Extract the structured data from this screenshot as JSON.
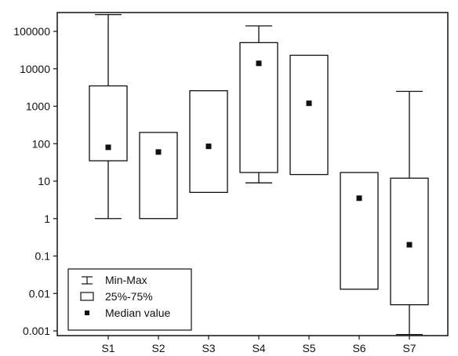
{
  "chart_data": {
    "type": "box",
    "title": "",
    "xlabel": "",
    "ylabel": "",
    "y_scale": "log",
    "ylim": [
      0.001,
      200000
    ],
    "grid": false,
    "legend_position": "bottom-left",
    "y_ticks": [
      {
        "value": 100000,
        "label": "100000"
      },
      {
        "value": 10000,
        "label": "10000"
      },
      {
        "value": 1000,
        "label": "1000"
      },
      {
        "value": 100,
        "label": "100"
      },
      {
        "value": 10,
        "label": "10"
      },
      {
        "value": 1,
        "label": "1"
      },
      {
        "value": 0.1,
        "label": "0.1"
      },
      {
        "value": 0.01,
        "label": "0.01"
      },
      {
        "value": 0.001,
        "label": "0.001"
      }
    ],
    "categories": [
      "S1",
      "S2",
      "S3",
      "S4",
      "S5",
      "S6",
      "S7"
    ],
    "boxes": [
      {
        "label": "S1",
        "min": 1,
        "q1": 35,
        "median": 80,
        "q3": 3500,
        "max": 280000
      },
      {
        "label": "S2",
        "min": null,
        "q1": 1,
        "median": 60,
        "q3": 200,
        "max": null
      },
      {
        "label": "S3",
        "min": null,
        "q1": 5,
        "median": 85,
        "q3": 2600,
        "max": null
      },
      {
        "label": "S4",
        "min": 9,
        "q1": 17,
        "median": 14000,
        "q3": 50000,
        "max": 140000
      },
      {
        "label": "S5",
        "min": null,
        "q1": 15,
        "median": 1200,
        "q3": 23000,
        "max": null
      },
      {
        "label": "S6",
        "min": null,
        "q1": 0.013,
        "median": 3.5,
        "q3": 17,
        "max": null
      },
      {
        "label": "S7",
        "min": 0.0008,
        "q1": 0.005,
        "median": 0.2,
        "q3": 12,
        "max": 2500
      }
    ],
    "legend": [
      {
        "symbol": "whisker",
        "label": "Min-Max"
      },
      {
        "symbol": "box",
        "label": "25%-75%"
      },
      {
        "symbol": "point",
        "label": "Median value"
      }
    ],
    "colors": {
      "stroke": "#111111",
      "box_fill": "#ffffff",
      "median": "#111111",
      "background": "#ffffff"
    }
  }
}
